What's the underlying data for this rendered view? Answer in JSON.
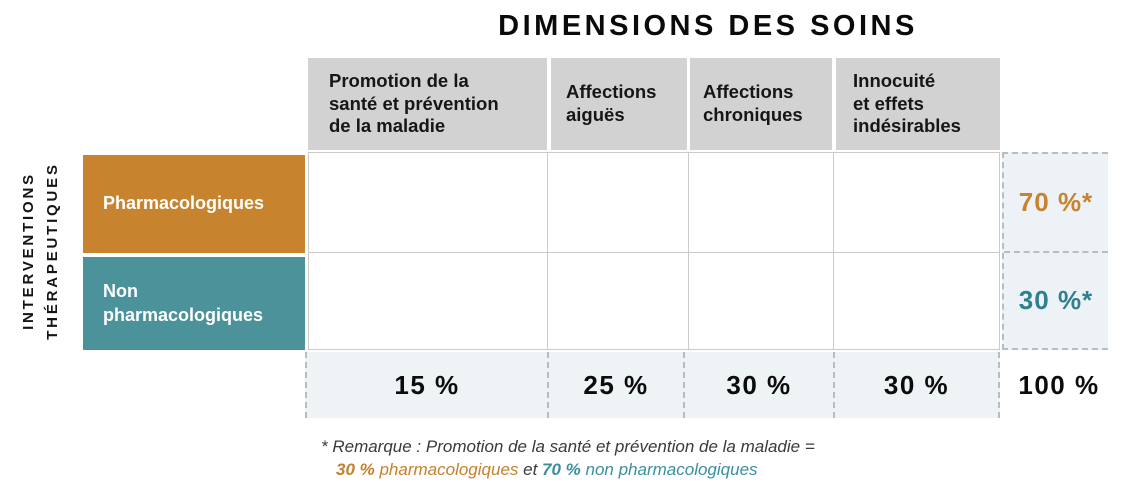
{
  "title": "DIMENSIONS DES SOINS",
  "y_axis": {
    "line1": "INTERVENTIONS",
    "line2": "THÉRAPEUTIQUES"
  },
  "columns": [
    {
      "label_lines": [
        "Promotion de la",
        "santé et prévention",
        "de la maladie"
      ],
      "total": "15 %"
    },
    {
      "label_lines": [
        "Affections",
        "aiguës"
      ],
      "total": "25 %"
    },
    {
      "label_lines": [
        "Affections",
        "chroniques"
      ],
      "total": "30 %"
    },
    {
      "label_lines": [
        "Innocuité",
        "et effets",
        "indésirables"
      ],
      "total": "30 %"
    }
  ],
  "rows": [
    {
      "label_lines": [
        "Pharmacologiques"
      ],
      "row_total": "70 %*",
      "color": "#c8832e"
    },
    {
      "label_lines": [
        "Non",
        "pharmacologiques"
      ],
      "row_total": "30 %*",
      "color": "#4b929b"
    }
  ],
  "grand_total": "100 %",
  "footnote": {
    "line1": "* Remarque : Promotion de la santé et prévention de la maladie =",
    "orange_pct": "30 %",
    "orange_text": " pharmacologiques ",
    "conjunction": "et",
    "teal_pct": " 70 %",
    "teal_text": " non pharmacologiques"
  },
  "colors": {
    "orange": "#c8832e",
    "teal": "#4b929b",
    "teal_text": "#2f7f8e",
    "footnote_orange": "#c5802c",
    "footnote_teal": "#3a8fa0",
    "header_bg": "#d2d2d2",
    "summary_bg": "#ecf2f5",
    "totals_bg": "#eef3f6",
    "grid_border": "#cbcbcb",
    "dashed_border": "#b7bdc0"
  }
}
